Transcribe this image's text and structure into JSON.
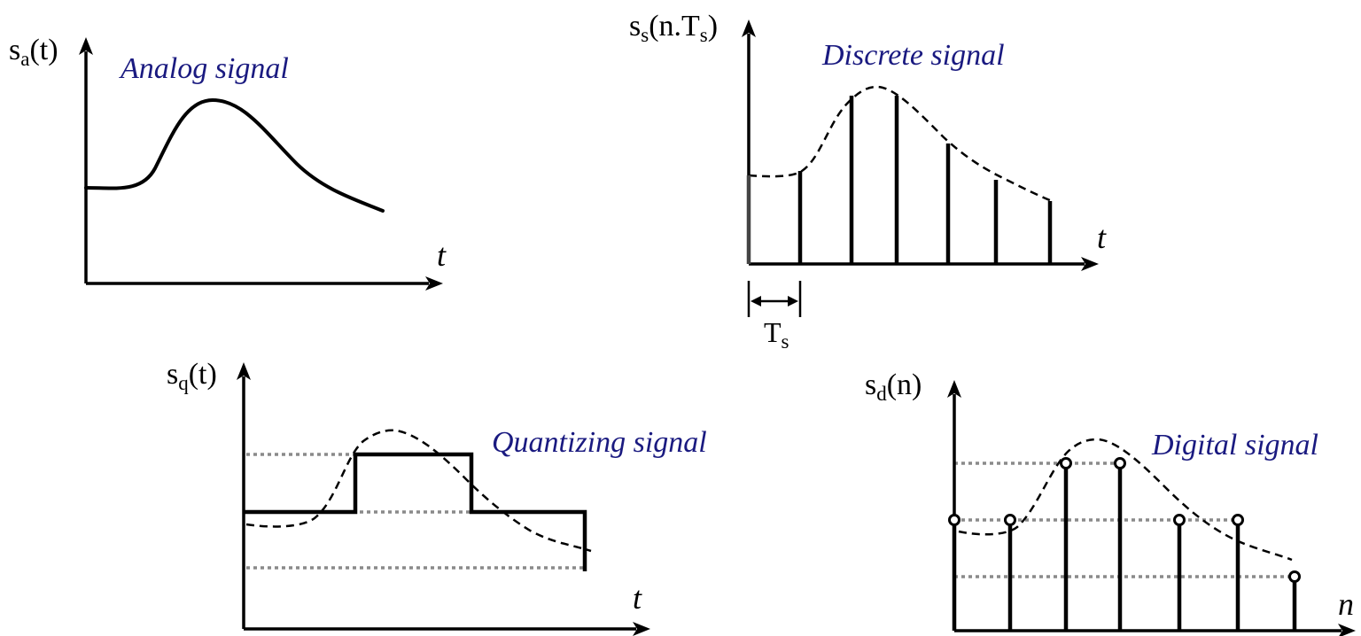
{
  "panels": {
    "analog": {
      "title": "Analog signal",
      "ylabel_main": "s",
      "ylabel_sub": "a",
      "ylabel_arg": "(t)",
      "xlabel": "t"
    },
    "discrete": {
      "title": "Discrete signal",
      "ylabel_main": "s",
      "ylabel_sub": "s",
      "ylabel_arg1": "(n.T",
      "ylabel_sub2": "s",
      "ylabel_arg2": ")",
      "xlabel": "t",
      "period_main": "T",
      "period_sub": "s"
    },
    "quantizing": {
      "title": "Quantizing signal",
      "ylabel_main": "s",
      "ylabel_sub": "q",
      "ylabel_arg": "(t)",
      "xlabel": "t"
    },
    "digital": {
      "title": "Digital signal",
      "ylabel_main": "s",
      "ylabel_sub": "d",
      "ylabel_arg": "(n)",
      "xlabel": "n"
    }
  }
}
